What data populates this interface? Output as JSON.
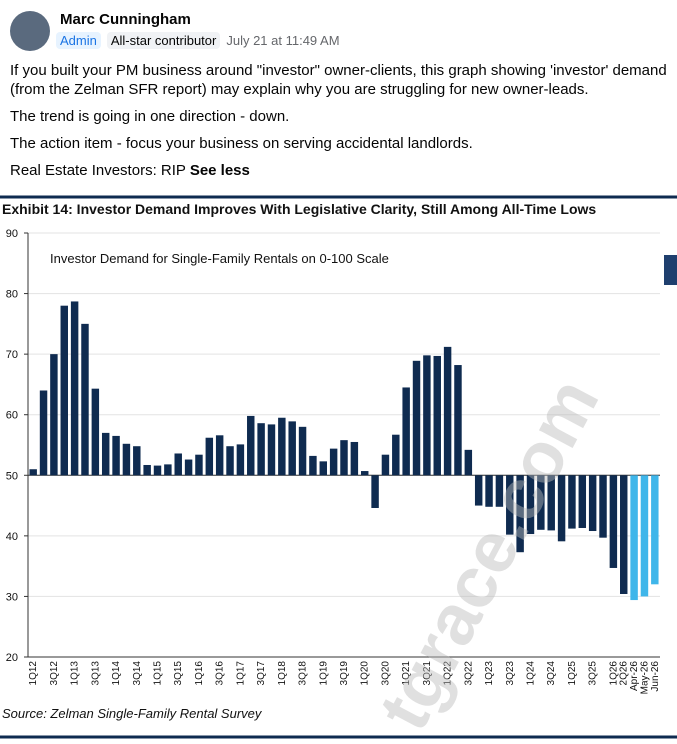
{
  "post": {
    "author": "Marc Cunningham",
    "badges": [
      "Admin",
      "All-star contributor"
    ],
    "timestamp": "July 21 at 11:49 AM",
    "paragraphs": [
      "If you built your PM business around \"investor\" owner-clients, this graph showing 'investor' demand (from the Zelman SFR report) may explain why you are struggling for new owner-leads.",
      "The trend is going in one direction - down.",
      "The action item - focus your business on serving accidental landlords.",
      "Real Estate Investors: RIP"
    ],
    "see_less": "See less"
  },
  "chart_data": {
    "type": "bar",
    "title": "Exhibit 14: Investor Demand Improves With Legislative Clarity, Still Among All-Time Lows",
    "subtitle": "Investor Demand for Single-Family Rentals on 0-100 Scale",
    "source": "Source: Zelman Single-Family Rental Survey",
    "watermark": "tgrace.com",
    "categories": [
      "1Q12",
      null,
      "3Q12",
      null,
      "1Q13",
      null,
      "3Q13",
      null,
      "1Q14",
      null,
      "3Q14",
      null,
      "1Q15",
      null,
      "3Q15",
      null,
      "1Q16",
      null,
      "3Q16",
      null,
      "1Q17",
      null,
      "3Q17",
      null,
      "1Q18",
      null,
      "3Q18",
      null,
      "1Q19",
      null,
      "3Q19",
      null,
      "1Q20",
      null,
      "3Q20",
      null,
      "1Q21",
      null,
      "3Q21",
      null,
      "1Q22",
      null,
      "3Q22",
      null,
      "1Q23",
      null,
      "3Q23",
      null,
      "1Q24",
      null,
      "3Q24",
      null,
      "1Q25",
      null,
      "3Q25",
      null,
      "1Q26",
      "2Q26",
      "Apr-26",
      "May-26",
      "Jun-26"
    ],
    "series": [
      {
        "color": "#0f2b50",
        "values": [
          51,
          64,
          70,
          78,
          78.7,
          75,
          64.3,
          57,
          56.5,
          55.2,
          54.8,
          51.7,
          51.6,
          51.8,
          53.6,
          52.6,
          53.4,
          56.2,
          56.6,
          54.8,
          55.1,
          59.8,
          58.6,
          58.4,
          59.5,
          58.9,
          58,
          53.2,
          52.3,
          54.4,
          55.8,
          55.5,
          50.7,
          44.6,
          53.4,
          56.7,
          64.5,
          68.9,
          69.8,
          69.7,
          71.2,
          68.2,
          54.2,
          45,
          44.8,
          44.8,
          40.2,
          37.3,
          40.3,
          41,
          40.9,
          39.1,
          41.2,
          41.3,
          40.8,
          39.7,
          34.7,
          30.4,
          null,
          null,
          null
        ]
      },
      {
        "color": "#3fb6ea",
        "values": [
          null,
          null,
          null,
          null,
          null,
          null,
          null,
          null,
          null,
          null,
          null,
          null,
          null,
          null,
          null,
          null,
          null,
          null,
          null,
          null,
          null,
          null,
          null,
          null,
          null,
          null,
          null,
          null,
          null,
          null,
          null,
          null,
          null,
          null,
          null,
          null,
          null,
          null,
          null,
          null,
          null,
          null,
          null,
          null,
          null,
          null,
          null,
          null,
          null,
          null,
          null,
          null,
          null,
          null,
          null,
          null,
          null,
          null,
          29.4,
          30,
          32
        ]
      }
    ],
    "baseline": 50,
    "ylim": [
      20,
      90
    ],
    "yticks": [
      20,
      30,
      40,
      50,
      60,
      70,
      80,
      90
    ],
    "grid": true
  }
}
